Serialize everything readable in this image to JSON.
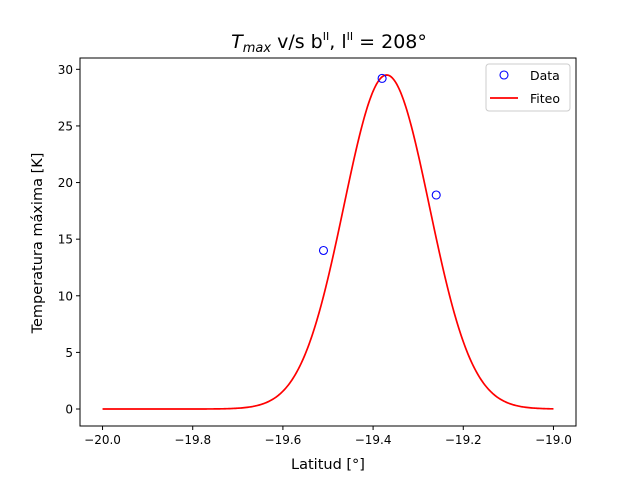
{
  "chart_data": {
    "type": "scatter",
    "title": {
      "main": "T",
      "sub": "max",
      "mid": " v/s b",
      "sup1": "II",
      "after1": ", l",
      "sup2": "II",
      "after2": " = 208°"
    },
    "xlabel": "Latitud [°]",
    "ylabel": "Temperatura máxima [K]",
    "xlim": [
      -20.05,
      -18.95
    ],
    "ylim": [
      -1.5,
      31.0
    ],
    "xticks": [
      -20.0,
      -19.8,
      -19.6,
      -19.4,
      -19.2,
      -19.0
    ],
    "xtick_labels": [
      "−20.0",
      "−19.8",
      "−19.6",
      "−19.4",
      "−19.2",
      "−19.0"
    ],
    "yticks": [
      0,
      5,
      10,
      15,
      20,
      25,
      30
    ],
    "ytick_labels": [
      "0",
      "5",
      "10",
      "15",
      "20",
      "25",
      "30"
    ],
    "legend_position": "top-right",
    "grid": false,
    "series": [
      {
        "name": "Data",
        "kind": "scatter-open-circle",
        "color": "#0000ff",
        "x": [
          -19.51,
          -19.38,
          -19.26
        ],
        "y": [
          14.0,
          29.2,
          18.9
        ]
      },
      {
        "name": "Fiteo",
        "kind": "line",
        "color": "#ff0000",
        "x_range": [
          -20.0,
          -19.0
        ],
        "gaussian": {
          "amplitude": 29.5,
          "center": -19.37,
          "sigma": 0.095
        }
      }
    ]
  }
}
